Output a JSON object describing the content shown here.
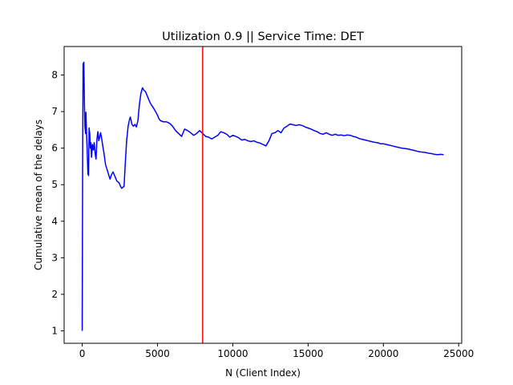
{
  "chart_data": {
    "type": "line",
    "title": "Utilization 0.9 || Service Time: DET",
    "xlabel": "N (Client Index)",
    "ylabel": "Cumulative mean of the delays",
    "xlim": [
      -1200,
      25200
    ],
    "ylim": [
      0.66,
      8.78
    ],
    "xticks": [
      {
        "value": 0,
        "label": "0"
      },
      {
        "value": 5000,
        "label": "5000"
      },
      {
        "value": 10000,
        "label": "10000"
      },
      {
        "value": 15000,
        "label": "15000"
      },
      {
        "value": 20000,
        "label": "20000"
      },
      {
        "value": 25000,
        "label": "25000"
      }
    ],
    "yticks": [
      {
        "value": 1,
        "label": "1"
      },
      {
        "value": 2,
        "label": "2"
      },
      {
        "value": 3,
        "label": "3"
      },
      {
        "value": 4,
        "label": "4"
      },
      {
        "value": 5,
        "label": "5"
      },
      {
        "value": 6,
        "label": "6"
      },
      {
        "value": 7,
        "label": "7"
      },
      {
        "value": 8,
        "label": "8"
      }
    ],
    "grid": false,
    "legend": "none",
    "series": [
      {
        "color": "#0000ff",
        "points": [
          [
            0,
            1.0
          ],
          [
            30,
            5.5
          ],
          [
            60,
            8.3
          ],
          [
            110,
            8.35
          ],
          [
            150,
            7.2
          ],
          [
            180,
            6.6
          ],
          [
            220,
            6.4
          ],
          [
            250,
            6.98
          ],
          [
            280,
            6.5
          ],
          [
            330,
            5.95
          ],
          [
            380,
            5.3
          ],
          [
            420,
            5.25
          ],
          [
            460,
            6.55
          ],
          [
            500,
            6.4
          ],
          [
            540,
            6.0
          ],
          [
            580,
            6.15
          ],
          [
            620,
            5.75
          ],
          [
            680,
            6.1
          ],
          [
            740,
            5.95
          ],
          [
            800,
            6.15
          ],
          [
            860,
            5.85
          ],
          [
            920,
            5.7
          ],
          [
            980,
            6.25
          ],
          [
            1040,
            6.45
          ],
          [
            1100,
            6.2
          ],
          [
            1160,
            6.3
          ],
          [
            1220,
            6.42
          ],
          [
            1280,
            6.3
          ],
          [
            1350,
            6.1
          ],
          [
            1450,
            5.85
          ],
          [
            1550,
            5.55
          ],
          [
            1700,
            5.35
          ],
          [
            1850,
            5.15
          ],
          [
            1950,
            5.28
          ],
          [
            2050,
            5.35
          ],
          [
            2150,
            5.25
          ],
          [
            2300,
            5.1
          ],
          [
            2450,
            5.05
          ],
          [
            2550,
            4.95
          ],
          [
            2620,
            4.9
          ],
          [
            2700,
            4.93
          ],
          [
            2780,
            4.95
          ],
          [
            2850,
            5.5
          ],
          [
            2950,
            6.2
          ],
          [
            3050,
            6.6
          ],
          [
            3150,
            6.8
          ],
          [
            3200,
            6.85
          ],
          [
            3300,
            6.65
          ],
          [
            3400,
            6.6
          ],
          [
            3500,
            6.65
          ],
          [
            3600,
            6.58
          ],
          [
            3700,
            6.75
          ],
          [
            3800,
            7.2
          ],
          [
            3900,
            7.5
          ],
          [
            4000,
            7.65
          ],
          [
            4100,
            7.58
          ],
          [
            4200,
            7.55
          ],
          [
            4300,
            7.45
          ],
          [
            4400,
            7.35
          ],
          [
            4500,
            7.25
          ],
          [
            4600,
            7.18
          ],
          [
            4700,
            7.12
          ],
          [
            4800,
            7.05
          ],
          [
            4900,
            6.98
          ],
          [
            5000,
            6.9
          ],
          [
            5100,
            6.8
          ],
          [
            5200,
            6.75
          ],
          [
            5400,
            6.72
          ],
          [
            5600,
            6.72
          ],
          [
            5800,
            6.68
          ],
          [
            6000,
            6.6
          ],
          [
            6200,
            6.48
          ],
          [
            6400,
            6.4
          ],
          [
            6600,
            6.32
          ],
          [
            6800,
            6.52
          ],
          [
            7000,
            6.48
          ],
          [
            7200,
            6.42
          ],
          [
            7400,
            6.35
          ],
          [
            7600,
            6.4
          ],
          [
            7800,
            6.48
          ],
          [
            8000,
            6.4
          ],
          [
            8200,
            6.32
          ],
          [
            8400,
            6.3
          ],
          [
            8600,
            6.25
          ],
          [
            8800,
            6.3
          ],
          [
            9000,
            6.35
          ],
          [
            9200,
            6.45
          ],
          [
            9400,
            6.42
          ],
          [
            9600,
            6.38
          ],
          [
            9800,
            6.3
          ],
          [
            10000,
            6.35
          ],
          [
            10200,
            6.32
          ],
          [
            10400,
            6.28
          ],
          [
            10600,
            6.22
          ],
          [
            10800,
            6.24
          ],
          [
            11000,
            6.2
          ],
          [
            11200,
            6.18
          ],
          [
            11400,
            6.2
          ],
          [
            11600,
            6.16
          ],
          [
            11800,
            6.14
          ],
          [
            12000,
            6.1
          ],
          [
            12200,
            6.06
          ],
          [
            12400,
            6.2
          ],
          [
            12600,
            6.4
          ],
          [
            12800,
            6.42
          ],
          [
            13000,
            6.48
          ],
          [
            13200,
            6.42
          ],
          [
            13400,
            6.55
          ],
          [
            13600,
            6.6
          ],
          [
            13800,
            6.66
          ],
          [
            14000,
            6.64
          ],
          [
            14200,
            6.62
          ],
          [
            14400,
            6.64
          ],
          [
            14600,
            6.62
          ],
          [
            14800,
            6.58
          ],
          [
            15000,
            6.55
          ],
          [
            15200,
            6.52
          ],
          [
            15400,
            6.48
          ],
          [
            15600,
            6.45
          ],
          [
            15800,
            6.4
          ],
          [
            16000,
            6.38
          ],
          [
            16200,
            6.42
          ],
          [
            16400,
            6.38
          ],
          [
            16600,
            6.35
          ],
          [
            16800,
            6.38
          ],
          [
            17000,
            6.35
          ],
          [
            17200,
            6.36
          ],
          [
            17400,
            6.34
          ],
          [
            17600,
            6.36
          ],
          [
            17800,
            6.35
          ],
          [
            18000,
            6.32
          ],
          [
            18200,
            6.3
          ],
          [
            18400,
            6.26
          ],
          [
            18600,
            6.24
          ],
          [
            18800,
            6.22
          ],
          [
            19000,
            6.2
          ],
          [
            19200,
            6.18
          ],
          [
            19400,
            6.16
          ],
          [
            19600,
            6.15
          ],
          [
            19800,
            6.12
          ],
          [
            20000,
            6.12
          ],
          [
            20200,
            6.1
          ],
          [
            20400,
            6.08
          ],
          [
            20600,
            6.06
          ],
          [
            20800,
            6.04
          ],
          [
            21000,
            6.02
          ],
          [
            21200,
            6.0
          ],
          [
            21400,
            5.99
          ],
          [
            21600,
            5.98
          ],
          [
            21800,
            5.96
          ],
          [
            22000,
            5.94
          ],
          [
            22200,
            5.92
          ],
          [
            22400,
            5.9
          ],
          [
            22600,
            5.89
          ],
          [
            22800,
            5.88
          ],
          [
            23000,
            5.86
          ],
          [
            23200,
            5.85
          ],
          [
            23400,
            5.83
          ],
          [
            23600,
            5.82
          ],
          [
            23800,
            5.83
          ],
          [
            24000,
            5.82
          ]
        ]
      }
    ],
    "vline": {
      "x": 8000,
      "color": "#ff0000"
    }
  }
}
